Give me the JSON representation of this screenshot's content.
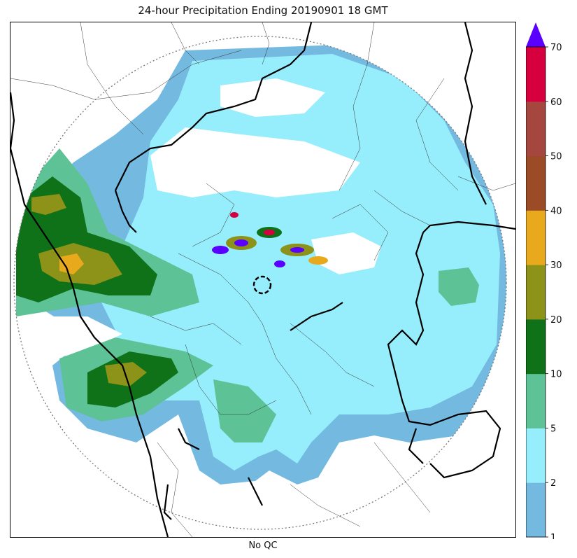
{
  "title": "24-hour Precipitation Ending 20190901 18 GMT",
  "xlabel": "No QC",
  "colorbar": {
    "ticks": [
      "1",
      "2",
      "5",
      "10",
      "20",
      "30",
      "40",
      "50",
      "60",
      "70"
    ],
    "bins": [
      {
        "from": 1,
        "to": 2,
        "color": "#74b9e0"
      },
      {
        "from": 2,
        "to": 5,
        "color": "#96edfb"
      },
      {
        "from": 5,
        "to": 10,
        "color": "#5dc396"
      },
      {
        "from": 10,
        "to": 20,
        "color": "#0f7118"
      },
      {
        "from": 20,
        "to": 30,
        "color": "#8c9318"
      },
      {
        "from": 30,
        "to": 40,
        "color": "#e8a91c"
      },
      {
        "from": 40,
        "to": 50,
        "color": "#9b4b26"
      },
      {
        "from": 50,
        "to": 60,
        "color": "#a5473f"
      },
      {
        "from": 60,
        "to": 70,
        "color": "#d6003f"
      }
    ],
    "extend_color": "#5a00ff"
  }
}
